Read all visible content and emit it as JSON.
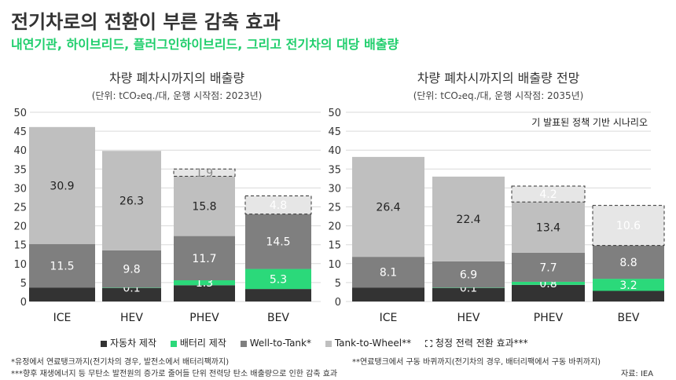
{
  "header": {
    "title": "전기차로의 전환이 부른 감축 효과",
    "subtitle": "내연기관, 하이브리드, 플러그인하이브리드, 그리고 전기차의 대당 배출량"
  },
  "colors": {
    "manufacturing": "#333333",
    "battery": "#2bd97a",
    "well_to_tank": "#7f7f7f",
    "tank_to_wheel": "#bfbfbf",
    "clean_power": "#e6e6e6"
  },
  "legend": [
    {
      "key": "manufacturing",
      "label": "자동차 제작"
    },
    {
      "key": "battery",
      "label": "배터리 제작"
    },
    {
      "key": "well_to_tank",
      "label": "Well-to-Tank*"
    },
    {
      "key": "tank_to_wheel",
      "label": "Tank-to-Wheel**"
    },
    {
      "key": "clean_power",
      "label": "청정 전력 전환 효과***"
    }
  ],
  "notes": {
    "note1": "*유정에서 연료탱크까지(전기차의 경우, 발전소에서 배터리팩까지)",
    "note2": "**연료탱크에서 구동 바퀴까지(전기차의 경우, 배터리팩에서 구동 바퀴까지)",
    "note3": "***향후 재생에너지 등 무탄소 발전원의 증가로 줄어들 단위 전력당 탄소 배출량으로 인한 감축 효과",
    "source": "자료: IEA"
  },
  "chart_data": [
    {
      "type": "bar",
      "title": "차량 폐차시까지의 배출량",
      "subtitle": "(단위: tCO₂eq./대, 운행 시작점: 2023년)",
      "categories": [
        "ICE",
        "HEV",
        "PHEV",
        "BEV"
      ],
      "ylim": [
        0,
        50
      ],
      "yticks": [
        0,
        5,
        10,
        15,
        20,
        25,
        30,
        35,
        40,
        45,
        50
      ],
      "stacked": true,
      "series": [
        {
          "name": "자동차 제작",
          "key": "manufacturing",
          "values": [
            3.7,
            3.6,
            4.3,
            3.3
          ],
          "labels": [
            null,
            null,
            null,
            null
          ]
        },
        {
          "name": "배터리 제작",
          "key": "battery",
          "values": [
            0,
            0.1,
            1.3,
            5.3
          ],
          "labels": [
            null,
            "0.1",
            "1.3",
            "5.3"
          ]
        },
        {
          "name": "Well-to-Tank*",
          "key": "well_to_tank",
          "values": [
            11.5,
            9.8,
            11.7,
            14.5
          ],
          "labels": [
            "11.5",
            "9.8",
            "11.7",
            "14.5"
          ]
        },
        {
          "name": "Tank-to-Wheel**",
          "key": "tank_to_wheel",
          "values": [
            30.9,
            26.3,
            15.8,
            0
          ],
          "labels": [
            "30.9",
            "26.3",
            "15.8",
            null
          ]
        },
        {
          "name": "청정 전력 전환 효과***",
          "key": "clean_power",
          "values": [
            0,
            0,
            1.9,
            4.8
          ],
          "labels": [
            null,
            null,
            "1.9",
            "4.8"
          ]
        }
      ]
    },
    {
      "type": "bar",
      "title": "차량 폐차시까지의 배출량 전망",
      "subtitle": "(단위: tCO₂eq./대, 운행 시작점: 2035년)",
      "annotation": "기 발표된 정책 기반 시나리오",
      "categories": [
        "ICE",
        "HEV",
        "PHEV",
        "BEV"
      ],
      "ylim": [
        0,
        50
      ],
      "yticks": [
        0,
        5,
        10,
        15,
        20,
        25,
        30,
        35,
        40,
        45,
        50
      ],
      "stacked": true,
      "series": [
        {
          "name": "자동차 제작",
          "key": "manufacturing",
          "values": [
            3.7,
            3.6,
            4.4,
            2.8
          ],
          "labels": [
            null,
            null,
            null,
            null
          ]
        },
        {
          "name": "배터리 제작",
          "key": "battery",
          "values": [
            0,
            0.1,
            0.8,
            3.2
          ],
          "labels": [
            null,
            "0.1",
            "0.8",
            "3.2"
          ]
        },
        {
          "name": "Well-to-Tank*",
          "key": "well_to_tank",
          "values": [
            8.1,
            6.9,
            7.7,
            8.8
          ],
          "labels": [
            "8.1",
            "6.9",
            "7.7",
            "8.8"
          ]
        },
        {
          "name": "Tank-to-Wheel**",
          "key": "tank_to_wheel",
          "values": [
            26.4,
            22.4,
            13.4,
            0
          ],
          "labels": [
            "26.4",
            "22.4",
            "13.4",
            null
          ]
        },
        {
          "name": "청정 전력 전환 효과***",
          "key": "clean_power",
          "values": [
            0,
            0,
            4.2,
            10.6
          ],
          "labels": [
            null,
            null,
            "4.2",
            "10.6"
          ]
        }
      ]
    }
  ]
}
